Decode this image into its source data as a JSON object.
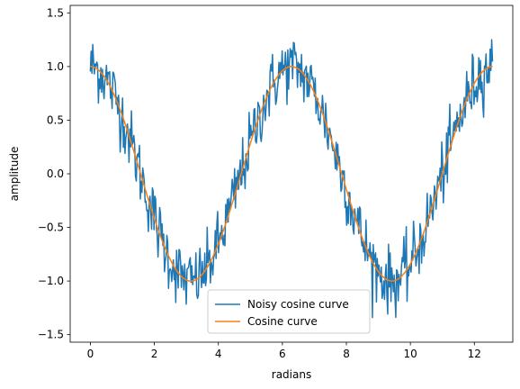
{
  "chart_data": {
    "type": "line",
    "title": "",
    "xlabel": "radians",
    "ylabel": "amplitude",
    "xlim": [
      -0.63,
      13.2
    ],
    "ylim": [
      -1.57,
      1.57
    ],
    "xticks": [
      0,
      2,
      4,
      6,
      8,
      10,
      12
    ],
    "yticks": [
      -1.5,
      -1.0,
      -0.5,
      0.0,
      0.5,
      1.0,
      1.5
    ],
    "xtick_labels": [
      "0",
      "2",
      "4",
      "6",
      "8",
      "10",
      "12"
    ],
    "ytick_labels": [
      "−1.5",
      "−1.0",
      "−0.5",
      "0.0",
      "0.5",
      "1.0",
      "1.5"
    ],
    "grid": false,
    "legend_position": "lower center",
    "series": [
      {
        "name": "Noisy cosine curve",
        "color": "#1f77b4",
        "x_range": [
          0,
          12.566
        ],
        "points": 500,
        "function": "cos(x) + noise",
        "noise_amplitude": 0.2
      },
      {
        "name": "Cosine curve",
        "color": "#ff7f0e",
        "x_range": [
          0,
          12.566
        ],
        "points": 500,
        "function": "cos(x)"
      }
    ]
  }
}
